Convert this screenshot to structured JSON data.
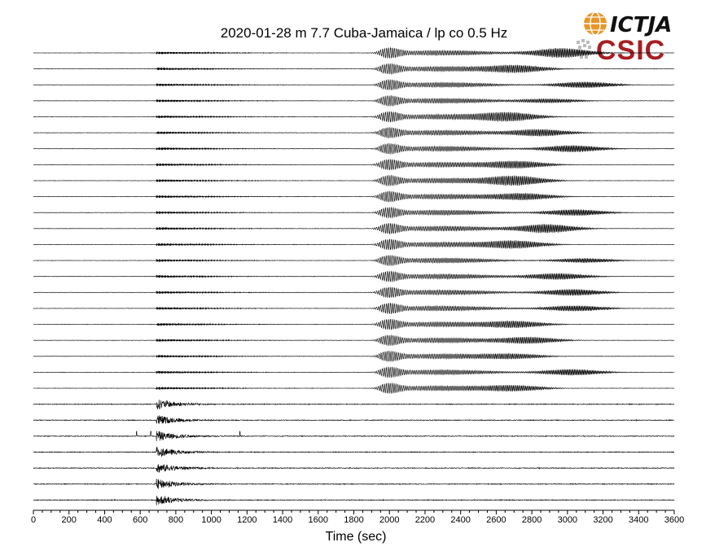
{
  "chart_data": {
    "type": "line",
    "title": "2020-01-28 m 7.7 Cuba-Jamaica  / lp co 0.5 Hz",
    "xlabel": "Time (sec)",
    "ylabel": "",
    "xlim": [
      0,
      3600
    ],
    "x_ticks": [
      "0",
      "200",
      "400",
      "600",
      "800",
      "1000",
      "1200",
      "1400",
      "1600",
      "1800",
      "2000",
      "2200",
      "2400",
      "2600",
      "2800",
      "3000",
      "3200",
      "3400",
      "3600"
    ],
    "grid": false,
    "trace_count": 29,
    "filtered_trace_count": 22,
    "raw_trace_count": 7,
    "p_arrival_sec": 690,
    "surface_wave_onset_sec": 1880,
    "surface_wave_peak_sec": 2000,
    "trace_color": "#000000"
  },
  "logos": {
    "ictja": "ICTJA",
    "csic": "CSIC",
    "ictja_globe_color": "#e8952a",
    "csic_color": "#a61e22"
  }
}
